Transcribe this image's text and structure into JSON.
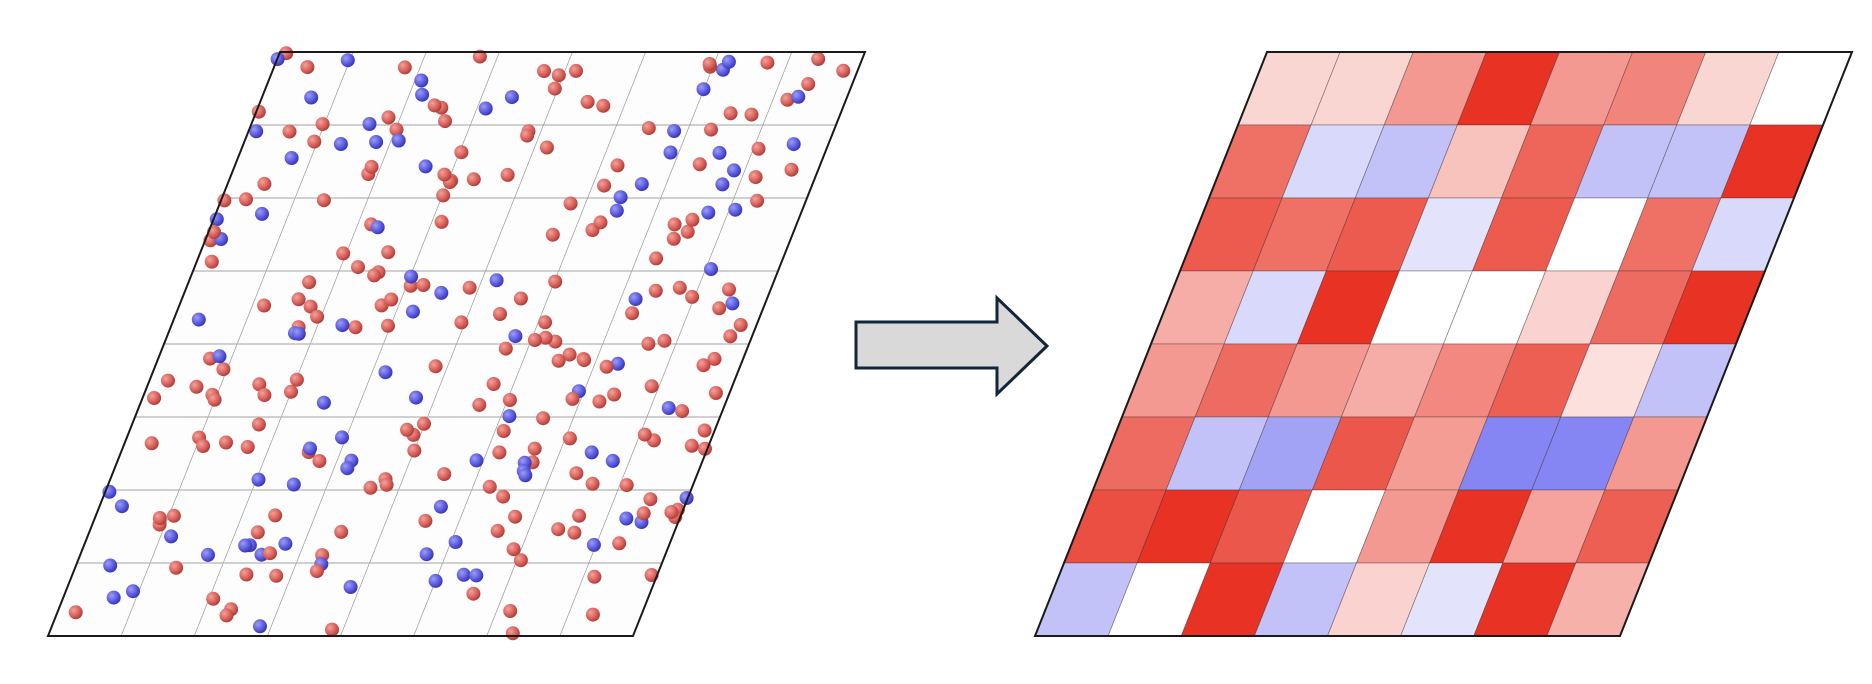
{
  "colors": {
    "atom_a": "#d9605a",
    "atom_b": "#5a5ae0",
    "map_high": "#e83223",
    "map_mid": "#ffffff",
    "map_low": "#6666f0",
    "arrow_fill": "#d9d9d9",
    "arrow_stroke": "#12263a",
    "frame": "#1a1a1a"
  },
  "left_panel": {
    "grid_rows": 8,
    "grid_cols": 8
  },
  "arrow": {
    "icon": "right-arrow-icon"
  },
  "right_panel": {
    "scale": [
      -1,
      1
    ],
    "cells": [
      [
        0.2,
        0.2,
        0.5,
        1.0,
        0.5,
        0.6,
        0.2,
        0.0
      ],
      [
        0.7,
        -0.25,
        -0.4,
        0.3,
        0.75,
        -0.4,
        -0.4,
        1.0
      ],
      [
        0.8,
        0.7,
        0.8,
        -0.18,
        0.8,
        0.0,
        0.7,
        -0.25
      ],
      [
        0.4,
        -0.25,
        1.0,
        0.0,
        0.0,
        0.22,
        0.72,
        1.0
      ],
      [
        0.5,
        0.72,
        0.5,
        0.4,
        0.58,
        0.78,
        0.15,
        -0.4
      ],
      [
        0.72,
        -0.4,
        -0.6,
        0.82,
        0.48,
        -0.8,
        -0.8,
        0.5
      ],
      [
        0.86,
        1.0,
        0.82,
        0.0,
        0.5,
        1.0,
        0.45,
        0.78
      ],
      [
        -0.4,
        0.0,
        1.0,
        -0.4,
        0.22,
        -0.18,
        1.0,
        0.38
      ]
    ]
  }
}
